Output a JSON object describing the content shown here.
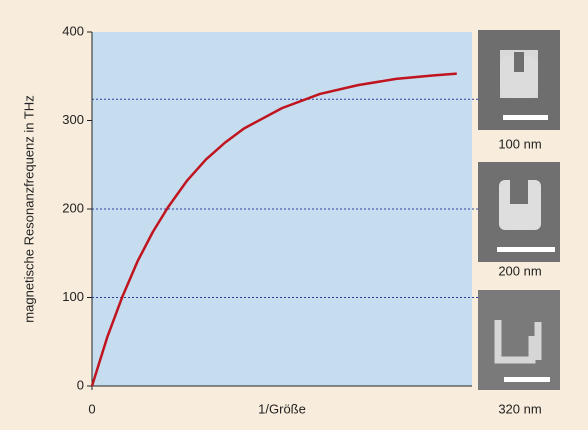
{
  "chart_data": {
    "type": "line",
    "x_label": "1/Größe",
    "y_label": "magnetische Resonanzfrequenz in THz",
    "x": [
      0,
      0.04,
      0.08,
      0.12,
      0.16,
      0.2,
      0.25,
      0.3,
      0.35,
      0.4,
      0.5,
      0.6,
      0.7,
      0.8,
      0.9,
      0.96
    ],
    "series": [
      {
        "color": "#c0141e",
        "values": [
          0,
          55,
          101,
          141,
          174,
          202,
          232,
          256,
          275,
          291,
          314,
          330,
          340,
          347,
          351,
          353
        ]
      }
    ],
    "xlim": [
      0,
      1
    ],
    "xticks": [
      0
    ],
    "ylim": [
      0,
      400
    ],
    "yticks": [
      0,
      100,
      200,
      300,
      400
    ],
    "reference_lines": [
      324,
      200,
      100
    ],
    "insets": [
      {
        "label": "100 nm"
      },
      {
        "label": "200 nm"
      },
      {
        "label": "320 nm"
      }
    ]
  }
}
